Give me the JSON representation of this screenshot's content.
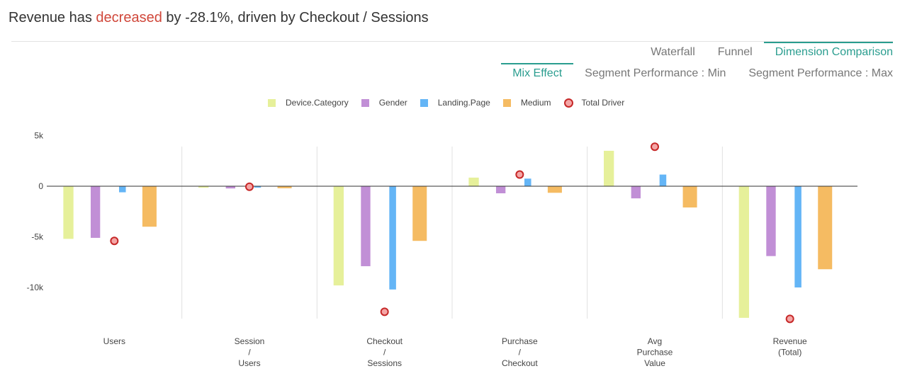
{
  "header": {
    "title_prefix": "Revenue has ",
    "title_keyword": "decreased",
    "title_suffix": " by -28.1%, driven by Checkout / Sessions"
  },
  "tabs_primary": [
    {
      "label": "Waterfall",
      "active": false
    },
    {
      "label": "Funnel",
      "active": false
    },
    {
      "label": "Dimension Comparison",
      "active": true
    }
  ],
  "tabs_secondary": [
    {
      "label": "Mix Effect",
      "active": true
    },
    {
      "label": "Segment Performance : Min",
      "active": false
    },
    {
      "label": "Segment Performance : Max",
      "active": false
    }
  ],
  "colors": {
    "Device.Category": "#e6f09a",
    "Gender": "#c18fd6",
    "Landing.Page": "#64b5f6",
    "Medium": "#f5bb62",
    "Total Driver": "#c62828",
    "Total Driver Fill": "#f4a6a6"
  },
  "chart_data": {
    "type": "bar",
    "categories": [
      [
        "Users"
      ],
      [
        "Session",
        "/",
        "Users"
      ],
      [
        "Checkout",
        "/",
        "Sessions"
      ],
      [
        "Purchase",
        "/",
        "Checkout"
      ],
      [
        "Avg",
        "Purchase",
        "Value"
      ],
      [
        "Revenue",
        "(Total)"
      ]
    ],
    "series": [
      {
        "name": "Device.Category",
        "values": [
          -5200,
          -150,
          -9800,
          850,
          3500,
          -13000
        ]
      },
      {
        "name": "Gender",
        "values": [
          -5100,
          -220,
          -7900,
          -700,
          -1200,
          -6900
        ]
      },
      {
        "name": "Landing.Page",
        "values": [
          -600,
          -80,
          -10200,
          750,
          1150,
          -10000
        ]
      },
      {
        "name": "Medium",
        "values": [
          -4000,
          -200,
          -5400,
          -650,
          -2100,
          -8200
        ]
      }
    ],
    "total_driver": {
      "name": "Total Driver",
      "values": [
        -5400,
        -50,
        -12400,
        1150,
        3900,
        -13100
      ]
    },
    "yticks": [
      5000,
      0,
      -5000,
      -10000
    ],
    "ytick_labels": [
      "5k",
      "0",
      "-5k",
      "-10k"
    ],
    "ylim": [
      -13000,
      5000
    ],
    "legend_position": "top-center"
  }
}
